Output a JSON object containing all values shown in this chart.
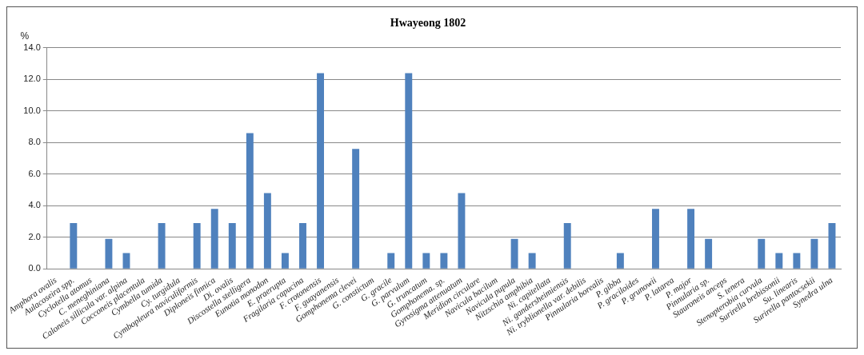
{
  "chart_data": {
    "type": "bar",
    "title": "Hwayeong 1802",
    "ylabel": "%",
    "categories": [
      "Amphora ovalis",
      "Aulacoseira spp.",
      "Cyclotella atomus",
      "C. meneghiniana",
      "Caloneis sillicula var. alpina",
      "Cocconeis placentula",
      "Cymbella tumida",
      "Cy. turgidula",
      "Cymbopleura naviculiformis",
      "Diploneis finnica",
      "Di. ovalis",
      "Discostella stelligera",
      "Eunotia monodon",
      "E. praerupta",
      "Fragilaria capucina",
      "F. crotonensis",
      "F. guayanensis",
      "Gomphonema clevei",
      "G. constictum",
      "G. gracile",
      "G. parvulum",
      "G. truncatum",
      "Gomphonema. sp.",
      "Gyrosigma attenuatum",
      "Meridion circulare",
      "Navicula bacilum",
      "Navicula pupula",
      "Nitzschia amphibia",
      "Ni. capitellata",
      "Ni. gandersheimiensis",
      "Ni. tryblionella var. debilis",
      "Pinnularia borealis",
      "P. gibba",
      "P. graciloides",
      "P. grunowii",
      "P. latarea",
      "P. major",
      "Pinnularia sp.",
      "Stauroneis anceps",
      "S. tenera",
      "Stenopterobia curvula",
      "Surirella brebissonii",
      "Su. linearis",
      "Surirella pantocsekii",
      "Synedra ulna"
    ],
    "values": [
      0,
      2.9,
      0,
      1.9,
      1.0,
      0,
      2.9,
      0,
      2.9,
      3.8,
      2.9,
      8.6,
      4.8,
      1.0,
      2.9,
      12.4,
      0,
      7.6,
      0,
      1.0,
      12.4,
      1.0,
      1.0,
      4.8,
      0,
      0,
      1.9,
      1.0,
      0,
      2.9,
      0,
      0,
      1.0,
      0,
      3.8,
      0,
      3.8,
      1.9,
      0,
      0,
      1.9,
      1.0,
      1.0,
      1.9,
      2.9
    ],
    "color": "#4f81bd",
    "ylim": [
      0,
      14
    ],
    "yticks": [
      {
        "value": 0,
        "label": "0.0"
      },
      {
        "value": 2,
        "label": "2.0"
      },
      {
        "value": 4,
        "label": "4.0"
      },
      {
        "value": 6,
        "label": "6.0"
      },
      {
        "value": 8,
        "label": "8.0"
      },
      {
        "value": 10,
        "label": "10.0"
      },
      {
        "value": 12,
        "label": "12.0"
      },
      {
        "value": 14,
        "label": "14.0"
      }
    ],
    "grid": "y",
    "legend": false
  }
}
